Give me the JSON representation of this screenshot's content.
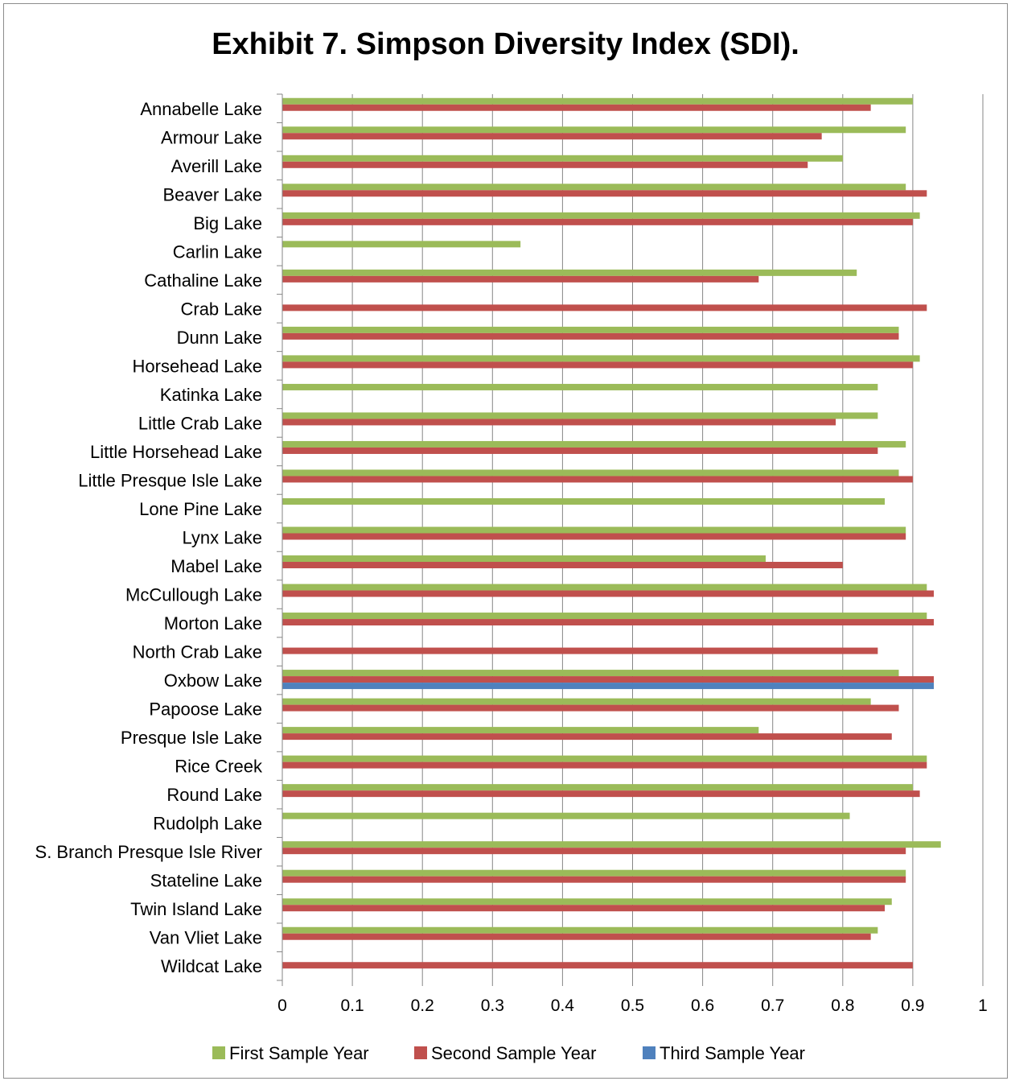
{
  "chart_data": {
    "type": "bar",
    "orientation": "horizontal",
    "title": "Exhibit 7. Simpson Diversity Index (SDI).",
    "xlim": [
      0,
      1
    ],
    "x_ticks": [
      "0",
      "0.1",
      "0.2",
      "0.3",
      "0.4",
      "0.5",
      "0.6",
      "0.7",
      "0.8",
      "0.9",
      "1"
    ],
    "grid": true,
    "legend_position": "bottom",
    "categories": [
      "Annabelle Lake",
      "Armour Lake",
      "Averill Lake",
      "Beaver Lake",
      "Big Lake",
      "Carlin Lake",
      "Cathaline Lake",
      "Crab Lake",
      "Dunn Lake",
      "Horsehead Lake",
      "Katinka Lake",
      "Little Crab Lake",
      "Little Horsehead Lake",
      "Little Presque Isle Lake",
      "Lone Pine Lake",
      "Lynx Lake",
      "Mabel Lake",
      "McCullough Lake",
      "Morton Lake",
      "North Crab Lake",
      "Oxbow Lake",
      "Papoose Lake",
      "Presque Isle Lake",
      "Rice Creek",
      "Round Lake",
      "Rudolph Lake",
      "S. Branch Presque Isle River",
      "Stateline Lake",
      "Twin Island Lake",
      "Van Vliet Lake",
      "Wildcat Lake"
    ],
    "series": [
      {
        "name": "First Sample Year",
        "color": "#9bbb59",
        "values": [
          0.9,
          0.89,
          0.8,
          0.89,
          0.91,
          0.34,
          0.82,
          null,
          0.88,
          0.91,
          0.85,
          0.85,
          0.89,
          0.88,
          0.86,
          0.89,
          0.69,
          0.92,
          0.92,
          null,
          0.88,
          0.84,
          0.68,
          0.92,
          0.9,
          0.81,
          0.94,
          0.89,
          0.87,
          0.85,
          null
        ]
      },
      {
        "name": "Second Sample Year",
        "color": "#c0504d",
        "values": [
          0.84,
          0.77,
          0.75,
          0.92,
          0.9,
          null,
          0.68,
          0.92,
          0.88,
          0.9,
          null,
          0.79,
          0.85,
          0.9,
          null,
          0.89,
          0.8,
          0.93,
          0.93,
          0.85,
          0.93,
          0.88,
          0.87,
          0.92,
          0.91,
          null,
          0.89,
          0.89,
          0.86,
          0.84,
          0.9
        ]
      },
      {
        "name": "Third Sample Year",
        "color": "#4f81bd",
        "values": [
          null,
          null,
          null,
          null,
          null,
          null,
          null,
          null,
          null,
          null,
          null,
          null,
          null,
          null,
          null,
          null,
          null,
          null,
          null,
          null,
          0.93,
          null,
          null,
          null,
          null,
          null,
          null,
          null,
          null,
          null,
          null
        ]
      }
    ]
  }
}
